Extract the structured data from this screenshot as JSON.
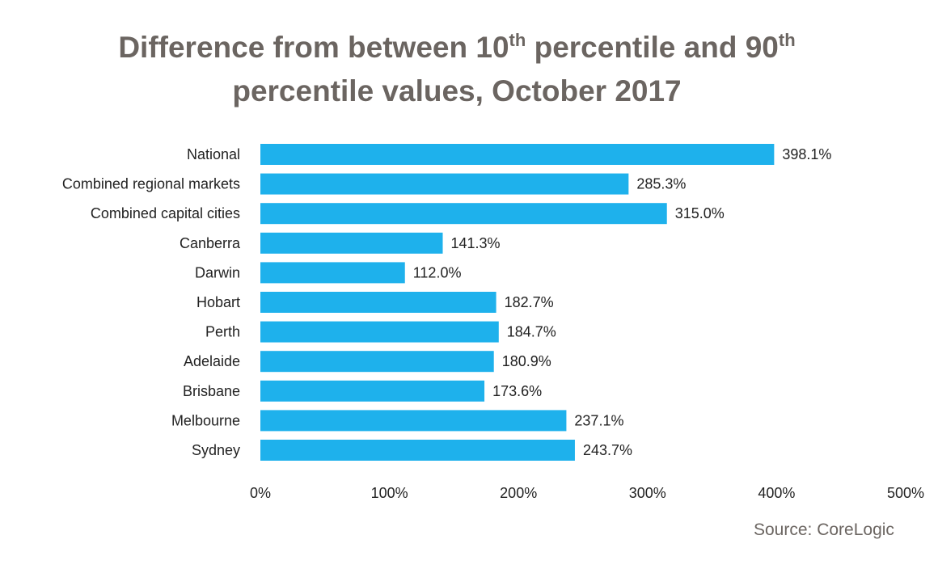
{
  "chart_data": {
    "type": "bar",
    "orientation": "horizontal",
    "title": {
      "line1_part1": "Difference from between 10",
      "line1_sup1": "th",
      "line1_part2": " percentile and 90",
      "line1_sup2": "th",
      "line2": "percentile values, October 2017"
    },
    "categories": [
      "National",
      "Combined regional markets",
      "Combined capital cities",
      "Canberra",
      "Darwin",
      "Hobart",
      "Perth",
      "Adelaide",
      "Brisbane",
      "Melbourne",
      "Sydney"
    ],
    "values": [
      398.1,
      285.3,
      315.0,
      141.3,
      112.0,
      182.7,
      184.7,
      180.9,
      173.6,
      237.1,
      243.7
    ],
    "value_labels": [
      "398.1%",
      "285.3%",
      "315.0%",
      "141.3%",
      "112.0%",
      "182.7%",
      "184.7%",
      "180.9%",
      "173.6%",
      "237.1%",
      "243.7%"
    ],
    "xlim": [
      0,
      500
    ],
    "xticks": [
      0,
      100,
      200,
      300,
      400,
      500
    ],
    "xtick_labels": [
      "0%",
      "100%",
      "200%",
      "300%",
      "400%",
      "500%"
    ],
    "xlabel": "",
    "ylabel": "",
    "grid": false,
    "bar_color": "#1eb1ec",
    "source": "Source: CoreLogic"
  }
}
